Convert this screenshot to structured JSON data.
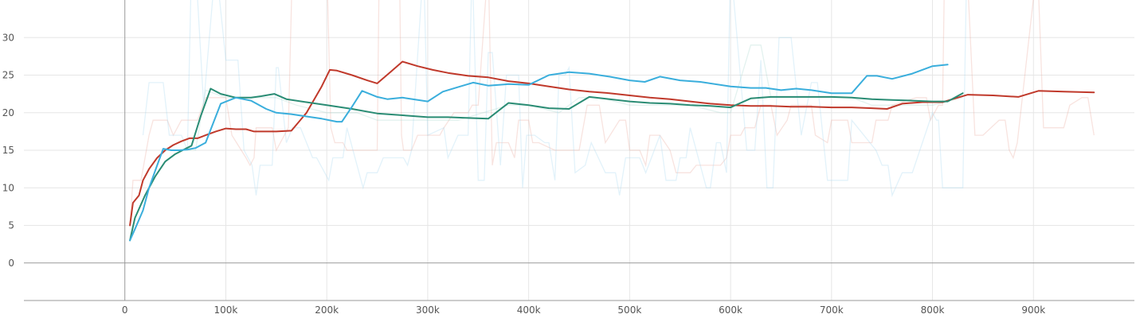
{
  "chart_data": {
    "type": "line",
    "title": "",
    "xlabel": "",
    "ylabel": "",
    "xlim": [
      -100000,
      1000000
    ],
    "ylim": [
      -5,
      35
    ],
    "x_ticks": [
      0,
      100000,
      200000,
      300000,
      400000,
      500000,
      600000,
      700000,
      800000,
      900000
    ],
    "x_tick_labels": [
      "0",
      "100k",
      "200k",
      "300k",
      "400k",
      "500k",
      "600k",
      "700k",
      "800k",
      "900k"
    ],
    "y_ticks": [
      0,
      5,
      10,
      15,
      20,
      25,
      30
    ],
    "y_tick_labels": [
      "0",
      "5",
      "10",
      "15",
      "20",
      "25",
      "30"
    ],
    "grid": true,
    "legend": "none",
    "series": [
      {
        "color": "#c0392b",
        "raw_color": "#e8a89c",
        "x": [
          5000,
          8000,
          14000,
          18000,
          24000,
          32000,
          40000,
          48000,
          56000,
          64000,
          72000,
          80000,
          90000,
          100000,
          110000,
          120000,
          128000,
          140000,
          150000,
          165000,
          180000,
          195000,
          203000,
          210000,
          225000,
          240000,
          250000,
          262000,
          275000,
          290000,
          305000,
          320000,
          340000,
          360000,
          380000,
          400000,
          420000,
          440000,
          460000,
          480000,
          500000,
          520000,
          540000,
          560000,
          580000,
          600000,
          620000,
          640000,
          660000,
          680000,
          700000,
          720000,
          740000,
          755000,
          770000,
          790000,
          810000,
          820000,
          835000,
          860000,
          885000,
          905000,
          930000,
          960000
        ],
        "y": [
          5.0,
          8.0,
          9.0,
          11.0,
          12.5,
          14.0,
          15.0,
          15.7,
          16.2,
          16.6,
          16.6,
          17.0,
          17.5,
          17.9,
          17.8,
          17.8,
          17.5,
          17.5,
          17.5,
          17.6,
          20.0,
          23.5,
          25.7,
          25.6,
          25.0,
          24.3,
          23.9,
          25.3,
          26.8,
          26.2,
          25.7,
          25.3,
          24.9,
          24.7,
          24.2,
          23.9,
          23.5,
          23.1,
          22.8,
          22.6,
          22.3,
          22.0,
          21.8,
          21.5,
          21.2,
          21.0,
          20.9,
          20.9,
          20.8,
          20.8,
          20.7,
          20.7,
          20.6,
          20.5,
          21.2,
          21.4,
          21.4,
          21.8,
          22.4,
          22.3,
          22.1,
          22.9,
          22.8,
          22.7
        ],
        "raw_x": [
          5000,
          8000,
          16000,
          24000,
          28000,
          42000,
          48000,
          56000,
          64000,
          72000,
          80000,
          100000,
          106000,
          120000,
          124000,
          128000,
          130000,
          146000,
          150000,
          162000,
          166000,
          200000,
          204000,
          208000,
          216000,
          220000,
          250000,
          252000,
          272000,
          274000,
          276000,
          284000,
          290000,
          312000,
          316000,
          326000,
          340000,
          344000,
          350000,
          360000,
          364000,
          368000,
          380000,
          386000,
          390000,
          400000,
          404000,
          410000,
          426000,
          434000,
          450000,
          458000,
          470000,
          476000,
          490000,
          496000,
          500000,
          510000,
          516000,
          520000,
          530000,
          540000,
          546000,
          560000,
          566000,
          590000,
          596000,
          600000,
          610000,
          614000,
          624000,
          630000,
          640000,
          646000,
          656000,
          660000,
          680000,
          684000,
          696000,
          700000,
          716000,
          720000,
          740000,
          744000,
          756000,
          760000,
          784000,
          794000,
          798000,
          806000,
          810000,
          812000,
          834000,
          842000,
          850000,
          866000,
          872000,
          876000,
          880000,
          884000,
          904000,
          910000,
          930000,
          936000,
          948000,
          954000,
          960000
        ],
        "raw_y": [
          5,
          11,
          11,
          17,
          19,
          19,
          17,
          19,
          19,
          19,
          22,
          22,
          17,
          14,
          13,
          14,
          18,
          18,
          15,
          18,
          40,
          40,
          18,
          16,
          16,
          15,
          15,
          40,
          40,
          17,
          15,
          15,
          17,
          17,
          18,
          20,
          20,
          21,
          21,
          40,
          13,
          16,
          16,
          14,
          19,
          19,
          16,
          16,
          15,
          15,
          15,
          21,
          21,
          16,
          19,
          19,
          15,
          15,
          13,
          17,
          17,
          15,
          12,
          12,
          13,
          13,
          14,
          17,
          17,
          18,
          18,
          21,
          21,
          17,
          19,
          21,
          21,
          17,
          16,
          19,
          19,
          16,
          16,
          19,
          19,
          21,
          22,
          22,
          19,
          21,
          21,
          40,
          40,
          17,
          17,
          19,
          19,
          15,
          14,
          16,
          40,
          18,
          18,
          21,
          22,
          22,
          17
        ]
      },
      {
        "color": "#2a8c74",
        "raw_color": "#a8d8cc",
        "x": [
          5000,
          10000,
          20000,
          30000,
          40000,
          50000,
          60000,
          66000,
          75000,
          85000,
          95000,
          110000,
          125000,
          135000,
          148000,
          160000,
          175000,
          200000,
          225000,
          250000,
          280000,
          300000,
          320000,
          340000,
          360000,
          380000,
          400000,
          420000,
          440000,
          460000,
          480000,
          500000,
          520000,
          540000,
          560000,
          580000,
          600000,
          620000,
          640000,
          660000,
          680000,
          700000,
          720000,
          740000,
          760000,
          780000,
          800000,
          815000,
          830000
        ],
        "y": [
          3.0,
          6.0,
          9.0,
          11.5,
          13.5,
          14.5,
          15.2,
          15.6,
          19.5,
          23.2,
          22.5,
          22.0,
          22.0,
          22.2,
          22.5,
          21.8,
          21.5,
          21.0,
          20.5,
          19.9,
          19.6,
          19.4,
          19.4,
          19.3,
          19.2,
          21.3,
          21.0,
          20.6,
          20.5,
          22.1,
          21.8,
          21.5,
          21.3,
          21.2,
          21.0,
          20.9,
          20.7,
          21.9,
          22.1,
          22.1,
          22.1,
          22.1,
          22.0,
          21.8,
          21.7,
          21.6,
          21.5,
          21.5,
          22.6
        ],
        "raw_x": [
          40000,
          70000,
          80000,
          100000,
          120000,
          150000,
          170000,
          200000,
          230000,
          250000,
          330000,
          380000,
          400000,
          430000,
          450000,
          470000,
          500000,
          530000,
          560000,
          590000,
          600000,
          620000,
          630000,
          640000,
          660000,
          690000,
          720000,
          740000,
          780000,
          800000,
          830000
        ],
        "raw_y": [
          15,
          15,
          23,
          22,
          22,
          22,
          21,
          20,
          20,
          19,
          19,
          21,
          21,
          20,
          22,
          22,
          21,
          21,
          21,
          20,
          20,
          29,
          29,
          22,
          22,
          22,
          22,
          21,
          21,
          21,
          22
        ]
      },
      {
        "color": "#3aaedc",
        "raw_color": "#a5d8ee",
        "x": [
          5000,
          10000,
          18000,
          24000,
          32000,
          38000,
          46000,
          54000,
          62000,
          70000,
          80000,
          95000,
          110000,
          125000,
          140000,
          150000,
          165000,
          180000,
          195000,
          210000,
          215000,
          225000,
          235000,
          250000,
          260000,
          275000,
          285000,
          300000,
          315000,
          330000,
          345000,
          360000,
          380000,
          400000,
          420000,
          440000,
          460000,
          480000,
          500000,
          515000,
          530000,
          550000,
          570000,
          600000,
          620000,
          635000,
          650000,
          665000,
          680000,
          700000,
          720000,
          735000,
          745000,
          760000,
          780000,
          800000,
          815000
        ],
        "y": [
          3.0,
          4.5,
          7.0,
          10.0,
          13.0,
          15.2,
          15.0,
          15.0,
          15.1,
          15.3,
          16.0,
          21.2,
          22.0,
          21.6,
          20.5,
          20.0,
          19.8,
          19.5,
          19.2,
          18.8,
          18.8,
          20.8,
          22.9,
          22.1,
          21.8,
          22.0,
          21.8,
          21.5,
          22.8,
          23.4,
          24.0,
          23.6,
          23.8,
          23.7,
          25.0,
          25.4,
          25.2,
          24.8,
          24.3,
          24.1,
          24.8,
          24.3,
          24.1,
          23.5,
          23.3,
          23.3,
          23.0,
          23.2,
          23.0,
          22.6,
          22.6,
          24.9,
          24.9,
          24.5,
          25.2,
          26.2,
          26.4
        ],
        "raw_x": [
          18000,
          24000,
          38000,
          44000,
          56000,
          62000,
          66000,
          70000,
          78000,
          90000,
          100000,
          112000,
          118000,
          126000,
          130000,
          134000,
          146000,
          150000,
          152000,
          160000,
          166000,
          174000,
          186000,
          190000,
          202000,
          206000,
          216000,
          220000,
          236000,
          240000,
          250000,
          256000,
          276000,
          280000,
          284000,
          296000,
          300000,
          316000,
          320000,
          330000,
          340000,
          344000,
          350000,
          356000,
          360000,
          364000,
          372000,
          378000,
          390000,
          394000,
          398000,
          406000,
          416000,
          420000,
          426000,
          430000,
          436000,
          440000,
          446000,
          456000,
          462000,
          476000,
          486000,
          490000,
          496000,
          510000,
          516000,
          530000,
          536000,
          546000,
          550000,
          556000,
          560000,
          576000,
          580000,
          586000,
          590000,
          596000,
          600000,
          616000,
          624000,
          630000,
          636000,
          642000,
          648000,
          660000,
          670000,
          680000,
          686000,
          696000,
          716000,
          720000,
          744000,
          750000,
          756000,
          760000,
          770000,
          780000,
          800000,
          804000,
          806000,
          810000,
          830000,
          834000
        ],
        "raw_y": [
          17,
          24,
          24,
          17,
          17,
          15,
          40,
          40,
          21,
          40,
          27,
          27,
          15,
          13,
          9,
          13,
          13,
          26,
          26,
          16,
          18,
          18,
          14,
          14,
          11,
          14,
          14,
          18,
          10,
          12,
          12,
          14,
          14,
          13,
          15,
          40,
          17,
          18,
          14,
          17,
          17,
          40,
          11,
          11,
          28,
          28,
          13,
          25,
          25,
          10,
          17,
          17,
          16,
          16,
          11,
          25,
          25,
          26,
          12,
          13,
          16,
          12,
          12,
          9,
          14,
          14,
          12,
          17,
          11,
          11,
          14,
          14,
          18,
          10,
          10,
          16,
          16,
          12,
          40,
          15,
          15,
          27,
          10,
          10,
          30,
          30,
          17,
          24,
          24,
          11,
          11,
          19,
          15,
          13,
          13,
          9,
          12,
          12,
          20,
          19,
          19,
          10,
          10,
          40,
          40,
          15,
          14
        ]
      }
    ]
  }
}
